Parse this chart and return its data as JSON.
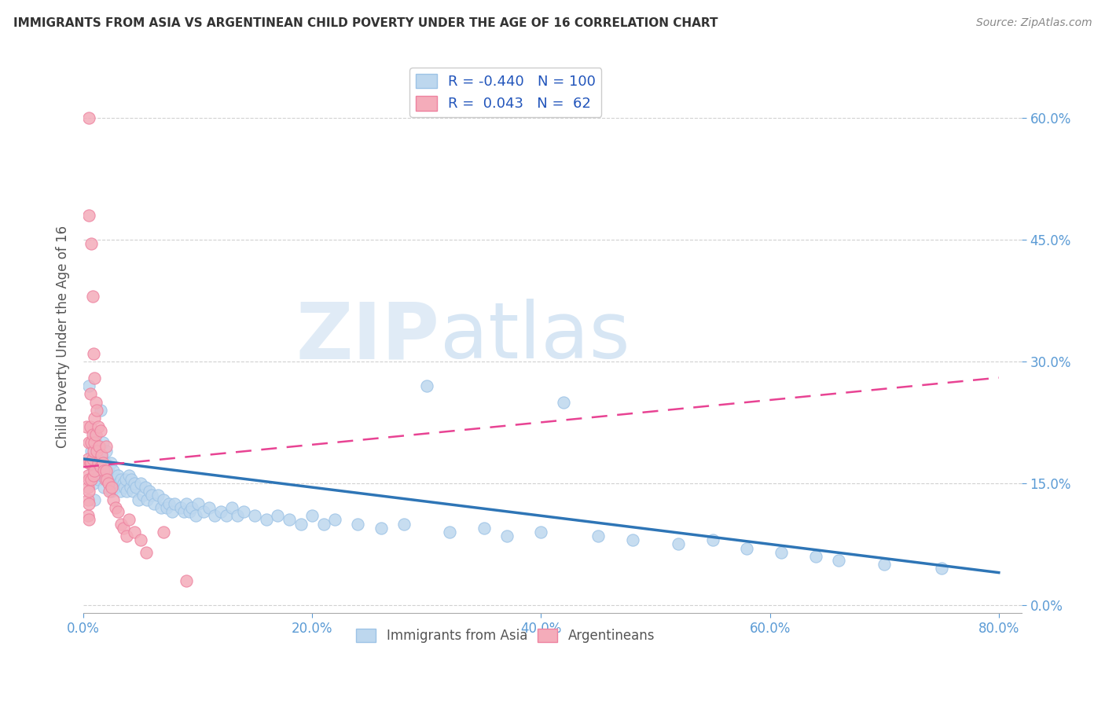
{
  "title": "IMMIGRANTS FROM ASIA VS ARGENTINEAN CHILD POVERTY UNDER THE AGE OF 16 CORRELATION CHART",
  "source": "Source: ZipAtlas.com",
  "xlabel_tick_vals": [
    0.0,
    0.2,
    0.4,
    0.6,
    0.8
  ],
  "ylabel_tick_vals": [
    0.0,
    0.15,
    0.3,
    0.45,
    0.6
  ],
  "ylabel_label": "Child Poverty Under the Age of 16",
  "xlim": [
    0.0,
    0.82
  ],
  "ylim": [
    -0.01,
    0.67
  ],
  "blue_R": -0.44,
  "blue_N": 100,
  "pink_R": 0.043,
  "pink_N": 62,
  "blue_color": "#BDD7EE",
  "pink_color": "#F4ACBA",
  "blue_edge_color": "#9DC3E6",
  "pink_edge_color": "#EE82A0",
  "blue_line_color": "#2E75B6",
  "pink_line_color": "#E84393",
  "watermark_zip": "ZIP",
  "watermark_atlas": "atlas",
  "legend_label_blue": "Immigrants from Asia",
  "legend_label_pink": "Argentineans",
  "background_color": "#FFFFFF",
  "grid_color": "#CCCCCC",
  "blue_scatter_x": [
    0.005,
    0.007,
    0.008,
    0.009,
    0.01,
    0.01,
    0.01,
    0.011,
    0.012,
    0.013,
    0.015,
    0.015,
    0.016,
    0.017,
    0.018,
    0.018,
    0.019,
    0.02,
    0.02,
    0.021,
    0.022,
    0.023,
    0.024,
    0.025,
    0.025,
    0.026,
    0.027,
    0.028,
    0.029,
    0.03,
    0.031,
    0.032,
    0.033,
    0.035,
    0.036,
    0.037,
    0.038,
    0.04,
    0.041,
    0.042,
    0.043,
    0.045,
    0.046,
    0.048,
    0.05,
    0.052,
    0.054,
    0.056,
    0.058,
    0.06,
    0.062,
    0.065,
    0.068,
    0.07,
    0.073,
    0.075,
    0.078,
    0.08,
    0.085,
    0.088,
    0.09,
    0.093,
    0.095,
    0.098,
    0.1,
    0.105,
    0.11,
    0.115,
    0.12,
    0.125,
    0.13,
    0.135,
    0.14,
    0.15,
    0.16,
    0.17,
    0.18,
    0.19,
    0.2,
    0.21,
    0.22,
    0.24,
    0.26,
    0.28,
    0.3,
    0.32,
    0.35,
    0.37,
    0.4,
    0.42,
    0.45,
    0.48,
    0.52,
    0.55,
    0.58,
    0.61,
    0.64,
    0.66,
    0.7,
    0.75
  ],
  "blue_scatter_y": [
    0.27,
    0.19,
    0.17,
    0.15,
    0.21,
    0.165,
    0.13,
    0.2,
    0.175,
    0.155,
    0.24,
    0.185,
    0.16,
    0.2,
    0.17,
    0.145,
    0.175,
    0.19,
    0.155,
    0.17,
    0.165,
    0.155,
    0.175,
    0.16,
    0.14,
    0.165,
    0.15,
    0.145,
    0.155,
    0.16,
    0.15,
    0.14,
    0.155,
    0.15,
    0.145,
    0.155,
    0.14,
    0.16,
    0.145,
    0.155,
    0.14,
    0.15,
    0.145,
    0.13,
    0.15,
    0.135,
    0.145,
    0.13,
    0.14,
    0.135,
    0.125,
    0.135,
    0.12,
    0.13,
    0.12,
    0.125,
    0.115,
    0.125,
    0.12,
    0.115,
    0.125,
    0.115,
    0.12,
    0.11,
    0.125,
    0.115,
    0.12,
    0.11,
    0.115,
    0.11,
    0.12,
    0.11,
    0.115,
    0.11,
    0.105,
    0.11,
    0.105,
    0.1,
    0.11,
    0.1,
    0.105,
    0.1,
    0.095,
    0.1,
    0.27,
    0.09,
    0.095,
    0.085,
    0.09,
    0.25,
    0.085,
    0.08,
    0.075,
    0.08,
    0.07,
    0.065,
    0.06,
    0.055,
    0.05,
    0.045
  ],
  "pink_scatter_x": [
    0.003,
    0.004,
    0.004,
    0.004,
    0.004,
    0.004,
    0.005,
    0.005,
    0.005,
    0.005,
    0.005,
    0.005,
    0.005,
    0.005,
    0.006,
    0.006,
    0.006,
    0.007,
    0.007,
    0.007,
    0.007,
    0.008,
    0.008,
    0.008,
    0.009,
    0.009,
    0.009,
    0.01,
    0.01,
    0.01,
    0.01,
    0.011,
    0.011,
    0.012,
    0.012,
    0.013,
    0.013,
    0.014,
    0.015,
    0.015,
    0.016,
    0.017,
    0.018,
    0.019,
    0.02,
    0.02,
    0.021,
    0.022,
    0.023,
    0.025,
    0.026,
    0.028,
    0.03,
    0.033,
    0.035,
    0.038,
    0.04,
    0.045,
    0.05,
    0.055,
    0.07,
    0.09
  ],
  "pink_scatter_y": [
    0.22,
    0.18,
    0.16,
    0.145,
    0.13,
    0.11,
    0.6,
    0.48,
    0.2,
    0.175,
    0.155,
    0.14,
    0.125,
    0.105,
    0.26,
    0.22,
    0.175,
    0.445,
    0.2,
    0.175,
    0.155,
    0.38,
    0.21,
    0.18,
    0.31,
    0.19,
    0.16,
    0.28,
    0.23,
    0.2,
    0.165,
    0.25,
    0.21,
    0.24,
    0.19,
    0.22,
    0.175,
    0.195,
    0.215,
    0.17,
    0.185,
    0.175,
    0.165,
    0.155,
    0.195,
    0.165,
    0.155,
    0.15,
    0.14,
    0.145,
    0.13,
    0.12,
    0.115,
    0.1,
    0.095,
    0.085,
    0.105,
    0.09,
    0.08,
    0.065,
    0.09,
    0.03
  ],
  "blue_trend_x0": 0.0,
  "blue_trend_y0": 0.18,
  "blue_trend_x1": 0.8,
  "blue_trend_y1": 0.04,
  "pink_trend_x0": 0.0,
  "pink_trend_y0": 0.17,
  "pink_trend_x1": 0.8,
  "pink_trend_y1": 0.28
}
